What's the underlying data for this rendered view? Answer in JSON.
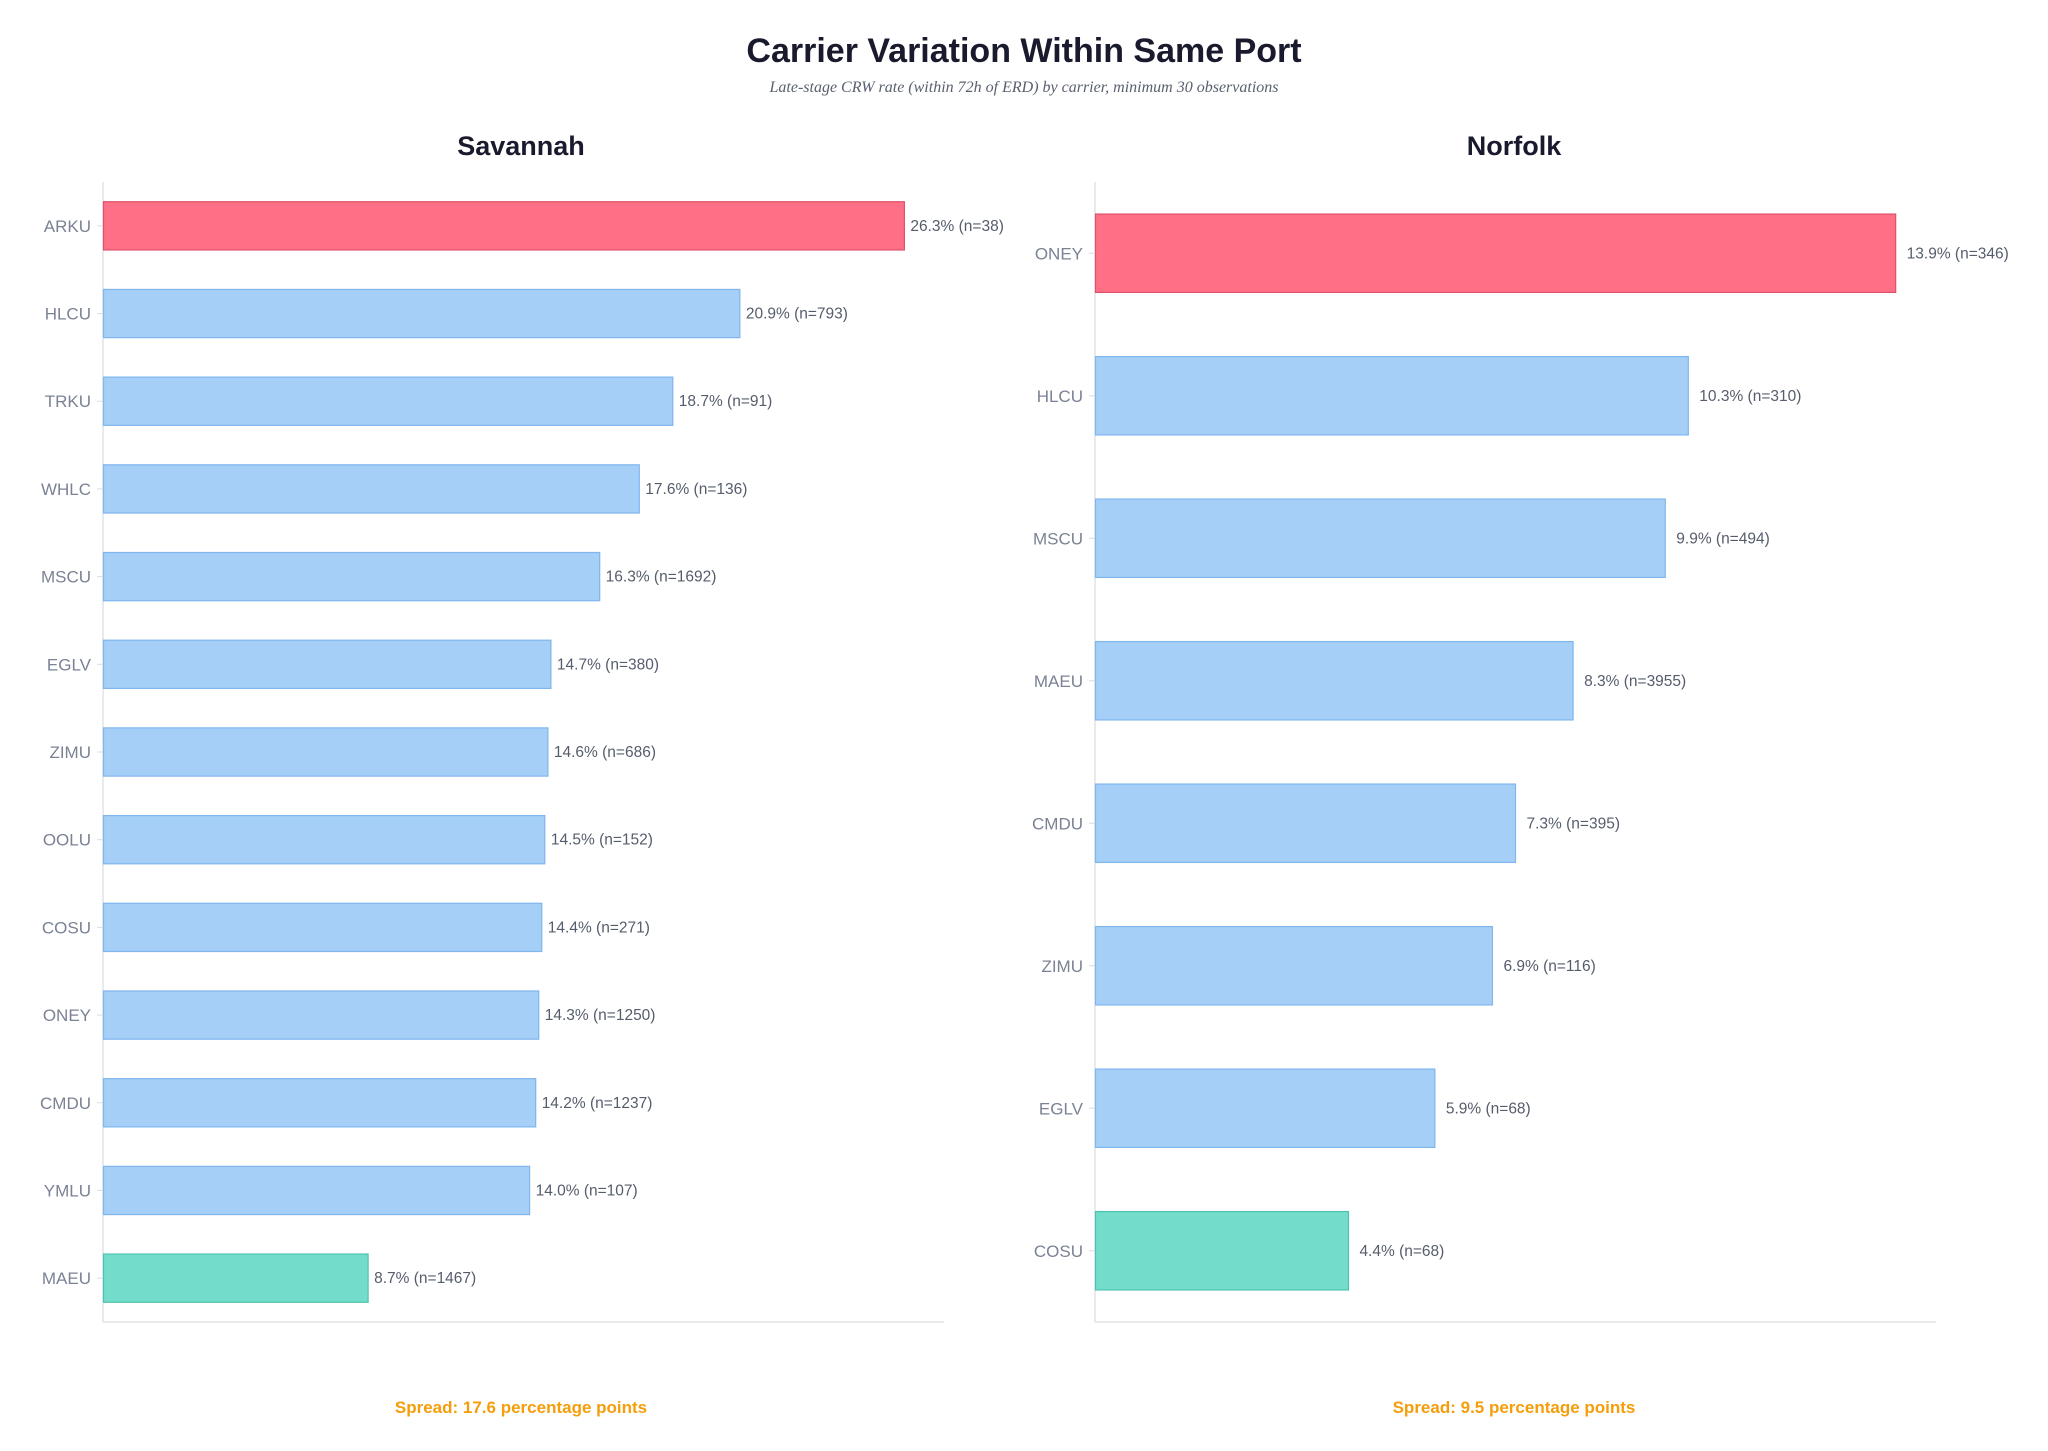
{
  "title": "Carrier Variation Within Same Port",
  "subtitle": "Late-stage CRW rate (within 72h of ERD) by carrier, minimum 30 observations",
  "colors": {
    "highest": "#ff6f86",
    "highest_edge": "#e0506a",
    "normal": "#a5cff7",
    "normal_edge": "#7fb6ee",
    "lowest": "#74dccb",
    "lowest_edge": "#4cc3ad",
    "spread": "#f59e0b",
    "axis": "#d9dce1"
  },
  "chart_data": [
    {
      "type": "bar",
      "orientation": "horizontal",
      "title": "Savannah",
      "categories": [
        "ARKU",
        "HLCU",
        "TRKU",
        "WHLC",
        "MSCU",
        "EGLV",
        "ZIMU",
        "OOLU",
        "COSU",
        "ONEY",
        "CMDU",
        "YMLU",
        "MAEU"
      ],
      "values": [
        26.3,
        20.9,
        18.7,
        17.6,
        16.3,
        14.7,
        14.6,
        14.5,
        14.4,
        14.3,
        14.2,
        14.0,
        8.7
      ],
      "value_labels": [
        "26.3%",
        "20.9%",
        "18.7%",
        "17.6%",
        "16.3%",
        "14.7%",
        "14.6%",
        "14.5%",
        "14.4%",
        "14.3%",
        "14.2%",
        "14.0%",
        "8.7%"
      ],
      "n_labels": [
        "(n=38)",
        "(n=793)",
        "(n=91)",
        "(n=136)",
        "(n=1692)",
        "(n=380)",
        "(n=686)",
        "(n=152)",
        "(n=271)",
        "(n=1250)",
        "(n=1237)",
        "(n=107)",
        "(n=1467)"
      ],
      "n": [
        38,
        793,
        91,
        136,
        1692,
        380,
        686,
        152,
        271,
        1250,
        1237,
        107,
        1467
      ],
      "xlim": [
        0,
        27.6
      ],
      "unit": "%",
      "footer": "Spread: 17.6 percentage points"
    },
    {
      "type": "bar",
      "orientation": "horizontal",
      "title": "Norfolk",
      "categories": [
        "ONEY",
        "HLCU",
        "MSCU",
        "MAEU",
        "CMDU",
        "ZIMU",
        "EGLV",
        "COSU"
      ],
      "values": [
        13.9,
        10.3,
        9.9,
        8.3,
        7.3,
        6.9,
        5.9,
        4.4
      ],
      "value_labels": [
        "13.9%",
        "10.3%",
        "9.9%",
        "8.3%",
        "7.3%",
        "6.9%",
        "5.9%",
        "4.4%"
      ],
      "n_labels": [
        "(n=346)",
        "(n=310)",
        "(n=494)",
        "(n=3955)",
        "(n=395)",
        "(n=116)",
        "(n=68)",
        "(n=68)"
      ],
      "n": [
        346,
        310,
        494,
        3955,
        395,
        116,
        68,
        68
      ],
      "xlim": [
        0,
        14.6
      ],
      "unit": "%",
      "footer": "Spread: 9.5 percentage points"
    }
  ]
}
